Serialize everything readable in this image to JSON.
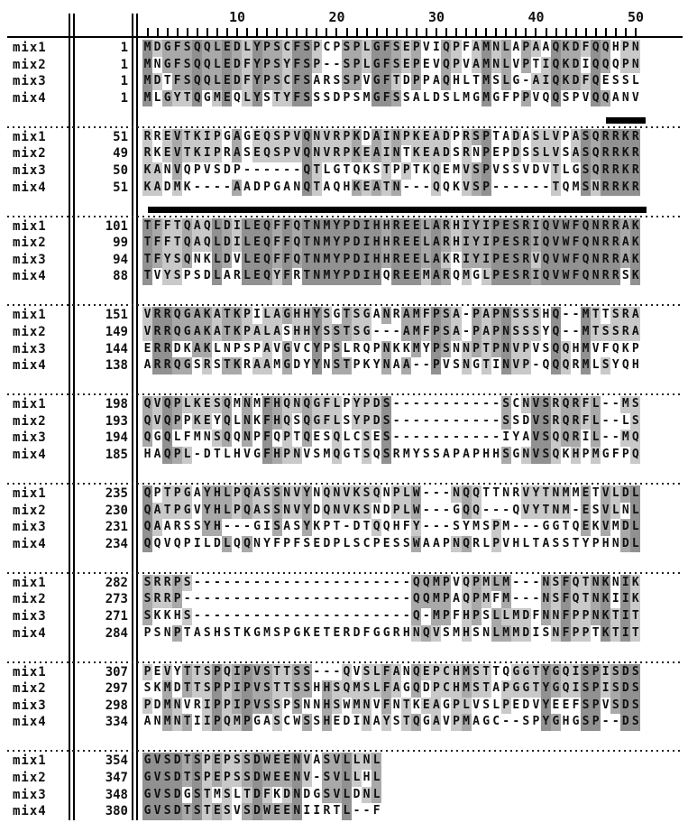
{
  "figure": {
    "type": "multiple-sequence-alignment",
    "sequence_names": [
      "mix1",
      "mix2",
      "mix3",
      "mix4"
    ],
    "ruler": {
      "major_labels": [
        "10",
        "20",
        "30",
        "40",
        "50"
      ],
      "columns_per_block": 50,
      "minor_tick_every": 1
    },
    "colors": {
      "background": "#ffffff",
      "text": "#111111",
      "identical_4of4_shade": "#919191",
      "identical_3of4_shade": "#a9a9a9",
      "similar_shade": "#c9c9c9",
      "underline_bar": "#000000"
    },
    "blocks": [
      {
        "rows": [
          {
            "name": "mix1",
            "start": "1",
            "seq": "MDGFSQQLEDLYPSCFSPCPSPLGFSEPVIQPFAMNLAPAAQKDFQQHPN"
          },
          {
            "name": "mix2",
            "start": "1",
            "seq": "MNGFSQQLEDFYPSYFSP--SPLGFSEPEVQPVAMNLVPTIQKDIQQQPN"
          },
          {
            "name": "mix3",
            "start": "1",
            "seq": "MDTFSQQLEDFYPSCFSARSSPVGFTDPPAQHLTMSLG-AIQKDFQESSL"
          },
          {
            "name": "mix4",
            "start": "1",
            "seq": "MLGYTQGMEQLYSTYFSSSDPSMGFSSALDSLMGMGFPPVQQSPVQQANV"
          }
        ]
      },
      {
        "rows": [
          {
            "name": "mix1",
            "start": "51",
            "seq": "RREVTKIPGAGEQSPVQNVRPKDAINPKEADPRSPTADASLVPASQRRKR"
          },
          {
            "name": "mix2",
            "start": "49",
            "seq": "RKEVTKIPRASEQSPVQNVRPKEAINTKEADSRNPEPDSSLVSASQRRKR"
          },
          {
            "name": "mix3",
            "start": "50",
            "seq": "KANVQPVSDP------QTLGTQKSTPPTKQEMVSPVSSVDVTLGSQRRKR"
          },
          {
            "name": "mix4",
            "start": "51",
            "seq": "KADMK----AADPGANQTAQHKEATN---QQKVSP------TQMSNRRKR"
          }
        ]
      },
      {
        "rows": [
          {
            "name": "mix1",
            "start": "101",
            "seq": "TFFTQAQLDILEQFFQTNMYPDIHHREELARHIYIPESRIQVWFQNRRAK"
          },
          {
            "name": "mix2",
            "start": "99",
            "seq": "TFFTQAQLDILEQFFQTNMYPDIHHREELARHIYIPESRIQVWFQNRRAK"
          },
          {
            "name": "mix3",
            "start": "94",
            "seq": "TFYSQNKLDVLEQFFQTNMYPDIHHREELAKRIYIPESRVQVWFQNRRAK"
          },
          {
            "name": "mix4",
            "start": "88",
            "seq": "TVYSPSDLARLEQYFRTNMYPDIHQREEMARQMGLPESRIQVWFQNRRSK"
          }
        ]
      },
      {
        "rows": [
          {
            "name": "mix1",
            "start": "151",
            "seq": "VRRQGAKATKPILAGHHYSGTSGANRAMFPSA-PAPNSSSHQ--MTTSRA"
          },
          {
            "name": "mix2",
            "start": "149",
            "seq": "VRRQGAKATKPALASHHYSSTSG---AMFPSA-PAPNSSSYQ--MTSSRA"
          },
          {
            "name": "mix3",
            "start": "144",
            "seq": "ERRDKAKLNPSPAVGVCYPSLRQPNKKMYPSNNPTPNVPVSQQHMVFQKP"
          },
          {
            "name": "mix4",
            "start": "138",
            "seq": "ARRQGSRSTKRAAMGDYYNSTPKYNAA--PVSNGTINVP-QQQRMLSYQH"
          }
        ]
      },
      {
        "rows": [
          {
            "name": "mix1",
            "start": "198",
            "seq": "QVQPLKESQMNMFHQNQGFLPYPDS-----------SCNVSRQRFL--MS"
          },
          {
            "name": "mix2",
            "start": "193",
            "seq": "QVQPPKEYQLNKFHQSQGFLSYPDS-----------SSDVSRQRFL--LS"
          },
          {
            "name": "mix3",
            "start": "194",
            "seq": "QGQLFMNSQQNPFQPTQESQLCSES-----------IYAVSQQRIL--MQ"
          },
          {
            "name": "mix4",
            "start": "185",
            "seq": "HAQPL-DTLHVGFHPNVSMQGTSQSRMYSSAPAPHHSGNVSQKHPMGFPQ"
          }
        ]
      },
      {
        "rows": [
          {
            "name": "mix1",
            "start": "235",
            "seq": "QPTPGAYHLPQASSNVYNQNVKSQNPLW---NQQTTNRVYTNMMETVLDL"
          },
          {
            "name": "mix2",
            "start": "230",
            "seq": "QATPGVYHLPQASSNVYDQNVKSNDPLW---GQQ---QVYTNM-ESVLNL"
          },
          {
            "name": "mix3",
            "start": "231",
            "seq": "QAARSSYH---GISASYKPT-DTQQHFY---SYMSPM---GGTQEKVMDL"
          },
          {
            "name": "mix4",
            "start": "234",
            "seq": "QQVQPILDLQQNYFPFSEDPLSCPESSWAAPNQRLPVHLTASSTYPHNDL"
          }
        ]
      },
      {
        "rows": [
          {
            "name": "mix1",
            "start": "282",
            "seq": "SRRPS----------------------QQMPVQPMLM---NSFQTNKNIK"
          },
          {
            "name": "mix2",
            "start": "273",
            "seq": "SRRP-----------------------QQMPAQPMFM---NSFQTNKIIK"
          },
          {
            "name": "mix3",
            "start": "271",
            "seq": "SKKHS----------------------Q-MPFHPSLLMDFNNFPPNKTIT"
          },
          {
            "name": "mix4",
            "start": "284",
            "seq": "PSNPTASHSTKGMSPGKETERDFGGRHNQVSMHSNLMMDISNFPPTKTIT"
          }
        ]
      },
      {
        "rows": [
          {
            "name": "mix1",
            "start": "307",
            "seq": "PEVYTTSPQIPVSTTSS---QVSLFANQEPCHMSTTQGGTYGQISPISDS"
          },
          {
            "name": "mix2",
            "start": "297",
            "seq": "SKMDTTSPPIPVSTTSSHHSQMSLFAGQDPCHMSTAPGGTYGQISPISDS"
          },
          {
            "name": "mix3",
            "start": "298",
            "seq": "PDMNVRIPPIPVSSPSNNHSWMNVFNTKEAGPLVSLPEDVYEEFSPVSDS"
          },
          {
            "name": "mix4",
            "start": "334",
            "seq": "ANMNTIIPQMPGASCWSSHEDINAYSTQGAVPMAGC--SPYGHGSP--DS"
          }
        ]
      },
      {
        "rows": [
          {
            "name": "mix1",
            "start": "354",
            "seq": "GVSDTSPEPSSDWEENVASVLLNL"
          },
          {
            "name": "mix2",
            "start": "347",
            "seq": "GVSDTSPEPSSDWEENV-SVLLHL"
          },
          {
            "name": "mix3",
            "start": "348",
            "seq": "GVSDGSTMSLTDFKDNDGSVLDNL"
          },
          {
            "name": "mix4",
            "start": "380",
            "seq": "GVSDTSTESVSDWEENIIRTL--F"
          }
        ]
      }
    ],
    "underline_bars": [
      {
        "block": 1,
        "from_col": 47,
        "to_col": 50
      },
      {
        "block": 2,
        "from_col": 1,
        "to_col": 50
      }
    ]
  }
}
